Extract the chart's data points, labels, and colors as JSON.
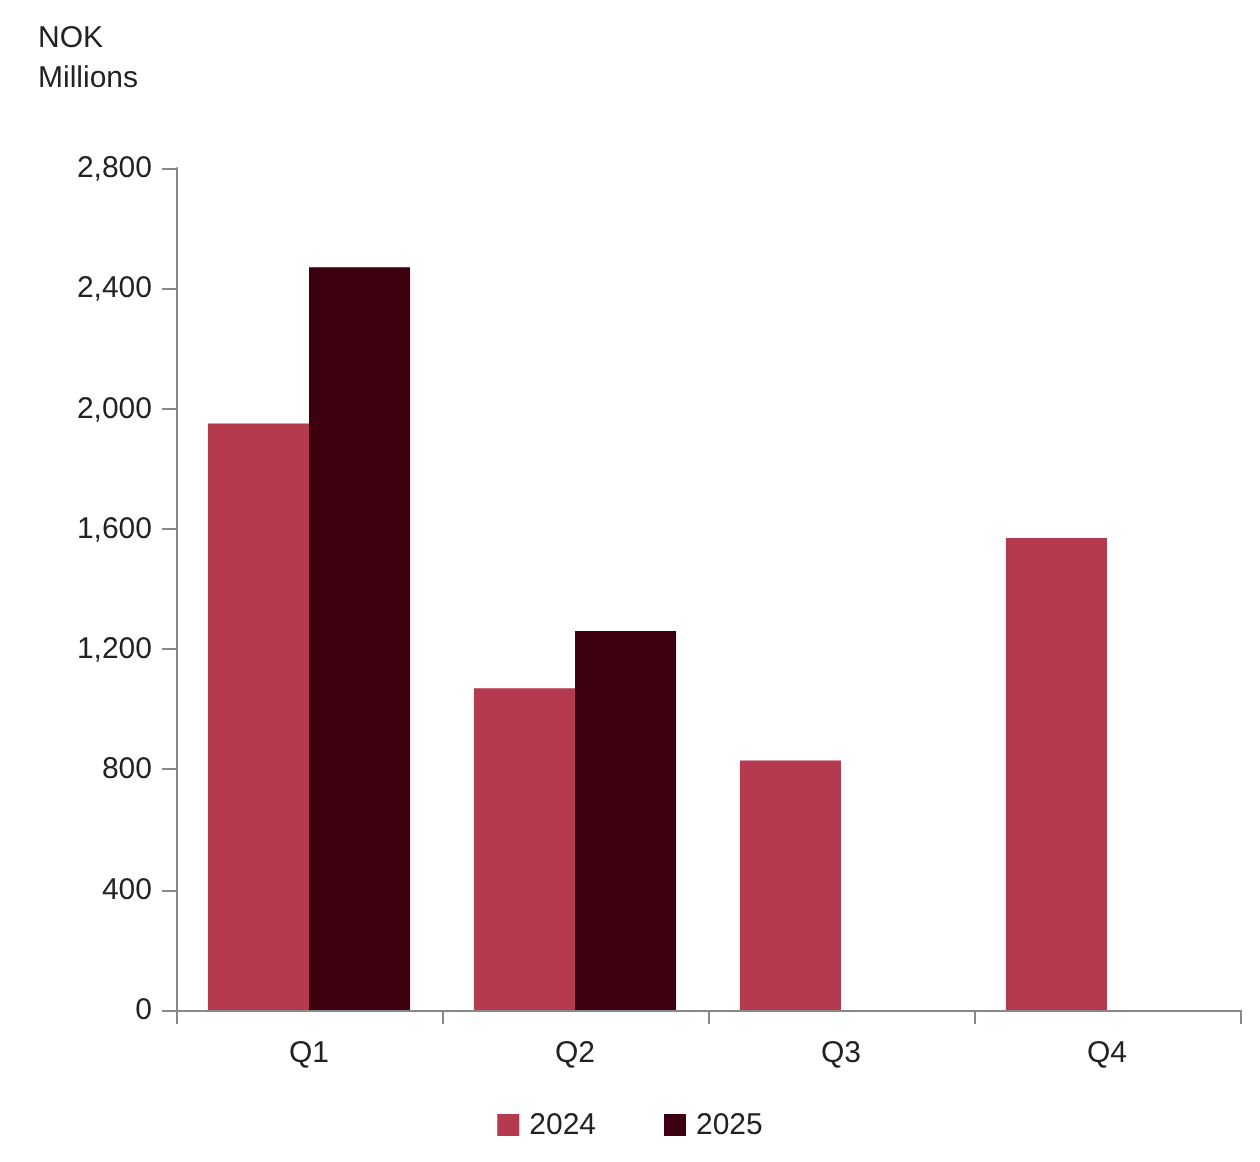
{
  "chart_data": {
    "type": "bar",
    "ylabel": "NOK Millions",
    "categories": [
      "Q1",
      "Q2",
      "Q3",
      "Q4"
    ],
    "series": [
      {
        "name": "2024",
        "color": "#b5394f",
        "values": [
          1950,
          1070,
          830,
          1570
        ]
      },
      {
        "name": "2025",
        "color": "#3d0011",
        "values": [
          2470,
          1260,
          null,
          null
        ]
      }
    ],
    "ylim": [
      0,
      2800
    ],
    "yticks": [
      0,
      400,
      800,
      {
        "value": 1200,
        "label": "1,200"
      },
      {
        "value": 1600,
        "label": "1,600"
      },
      {
        "value": 2000,
        "label": "2,000"
      },
      {
        "value": 2400,
        "label": "2,400"
      },
      {
        "value": 2800,
        "label": "2,800"
      }
    ],
    "grid": false,
    "legend": "bottom"
  }
}
